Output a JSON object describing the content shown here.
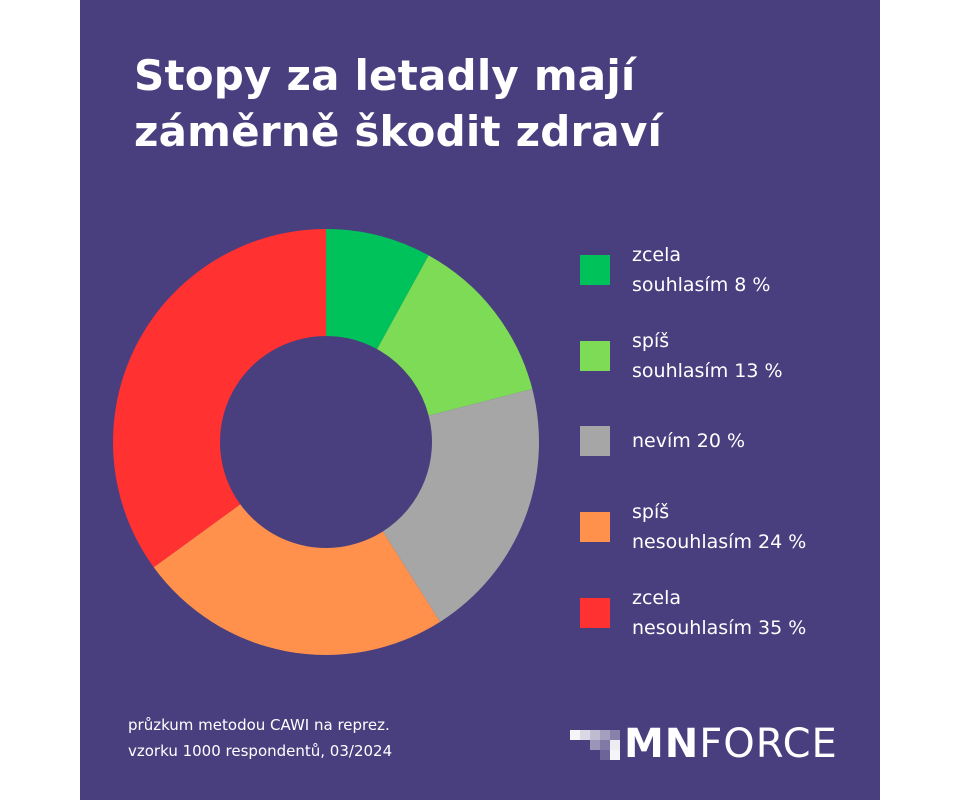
{
  "title_lines": [
    "Stopy za letadly mají",
    "záměrně škodit zdraví"
  ],
  "chart_data": {
    "type": "pie",
    "donut": true,
    "title": "Stopy za letadly mají záměrně škodit zdraví",
    "slices": [
      {
        "label": "zcela\nsouhlasím 8 %",
        "value": 8,
        "color": "#00c25a"
      },
      {
        "label": "spíš\nsouhlasím 13 %",
        "value": 13,
        "color": "#7ddb56"
      },
      {
        "label": "nevím 20 %",
        "value": 20,
        "color": "#a6a6a6"
      },
      {
        "label": "spíš\nnesouhlasím 24 %",
        "value": 24,
        "color": "#ff914d"
      },
      {
        "label": "zcela\nnesouhlasím 35 %",
        "value": 35,
        "color": "#ff3131"
      }
    ],
    "legend_position": "right"
  },
  "footnote": "průzkum metodou CAWI na reprez.\nvzorku 1000 respondentů, 03/2024",
  "logo": {
    "bold": "MN",
    "light": "FORCE"
  },
  "colors": {
    "background": "#493f7f",
    "text": "#ffffff"
  }
}
